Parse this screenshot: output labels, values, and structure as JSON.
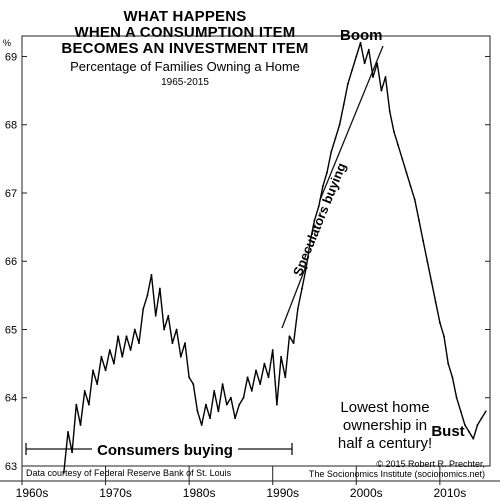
{
  "chart_data": {
    "type": "line",
    "title_lines": [
      "WHAT HAPPENS",
      "WHEN A CONSUMPTION ITEM",
      "BECOMES AN INVESTMENT ITEM"
    ],
    "subtitle": "Percentage of Families Owning a Home",
    "date_range": "1965-2015",
    "y_unit": "%",
    "ylim": [
      63,
      69.3
    ],
    "yticks": [
      "63",
      "64",
      "65",
      "66",
      "67",
      "68",
      "69"
    ],
    "xlim": [
      1960,
      2016
    ],
    "xticks": [
      {
        "value": 1960,
        "label": "1960s"
      },
      {
        "value": 1970,
        "label": "1970s"
      },
      {
        "value": 1980,
        "label": "1980s"
      },
      {
        "value": 1990,
        "label": "1990s"
      },
      {
        "value": 2000,
        "label": "2000s"
      },
      {
        "value": 2010,
        "label": "2010s"
      }
    ],
    "grid": "major ticks only",
    "series": [
      {
        "x": [
          1965.0,
          1965.5,
          1966.0,
          1966.5,
          1967.0,
          1967.5,
          1968.0,
          1968.5,
          1969.0,
          1969.5,
          1970.0,
          1970.5,
          1971.0,
          1971.5,
          1972.0,
          1972.5,
          1973.0,
          1973.5,
          1974.0,
          1974.5,
          1975.0,
          1975.5,
          1976.0,
          1976.5,
          1977.0,
          1977.5,
          1978.0,
          1978.5,
          1979.0,
          1979.5,
          1980.0,
          1980.5,
          1981.0,
          1981.5,
          1982.0,
          1982.5,
          1983.0,
          1983.5,
          1984.0,
          1984.5,
          1985.0,
          1985.5,
          1986.0,
          1986.5,
          1987.0,
          1987.5,
          1988.0,
          1988.5,
          1989.0,
          1989.5,
          1990.0,
          1990.5,
          1991.0,
          1991.5,
          1992.0,
          1992.5,
          1993.0,
          1993.5,
          1994.0,
          1994.5,
          1995.0,
          1995.5,
          1996.0,
          1996.5,
          1997.0,
          1997.5,
          1998.0,
          1998.5,
          1999.0,
          1999.5,
          2000.0,
          2000.5,
          2001.0,
          2001.5,
          2002.0,
          2002.5,
          2003.0,
          2003.5,
          2004.0,
          2004.5,
          2005.0,
          2005.5,
          2006.0,
          2006.5,
          2007.0,
          2007.5,
          2008.0,
          2008.5,
          2009.0,
          2009.5,
          2010.0,
          2010.5,
          2011.0,
          2011.5,
          2012.0,
          2012.5,
          2013.0,
          2013.5,
          2014.0,
          2014.5,
          2015.0,
          2015.5
        ],
        "y": [
          62.9,
          63.5,
          63.2,
          63.9,
          63.6,
          64.1,
          63.9,
          64.4,
          64.2,
          64.6,
          64.4,
          64.7,
          64.5,
          64.9,
          64.6,
          64.9,
          64.7,
          65.0,
          64.8,
          65.3,
          65.5,
          65.8,
          65.2,
          65.6,
          65.0,
          65.2,
          64.8,
          65.0,
          64.6,
          64.8,
          64.3,
          64.2,
          63.8,
          63.6,
          63.9,
          63.7,
          64.1,
          63.8,
          64.2,
          63.9,
          64.0,
          63.7,
          63.9,
          64.0,
          64.3,
          64.1,
          64.4,
          64.2,
          64.5,
          64.3,
          64.7,
          63.9,
          64.6,
          64.3,
          64.9,
          64.8,
          65.3,
          65.6,
          65.9,
          66.3,
          66.6,
          66.8,
          67.1,
          67.3,
          67.6,
          67.8,
          68.0,
          68.3,
          68.6,
          68.8,
          69.0,
          69.2,
          68.9,
          69.1,
          68.7,
          68.9,
          68.5,
          68.7,
          68.2,
          67.9,
          67.7,
          67.5,
          67.3,
          67.1,
          66.9,
          66.6,
          66.3,
          66.0,
          65.7,
          65.4,
          65.1,
          64.9,
          64.5,
          64.3,
          64.0,
          63.8,
          63.6,
          63.5,
          63.4,
          63.6,
          63.7,
          63.8
        ]
      }
    ],
    "annotations": {
      "boom": "Boom",
      "speculators": "Speculators buying",
      "consumers": "Consumers buying",
      "low_note_lines": [
        "Lowest home",
        "ownership in",
        "half a century!"
      ],
      "bust": "Bust"
    },
    "credits": {
      "left": "Data courtesy of Federal Reserve Bank of St. Louis",
      "right_lines": [
        "© 2015 Robert R. Prechter,",
        "The Socionomics Institute (socionomics.net)"
      ]
    }
  }
}
